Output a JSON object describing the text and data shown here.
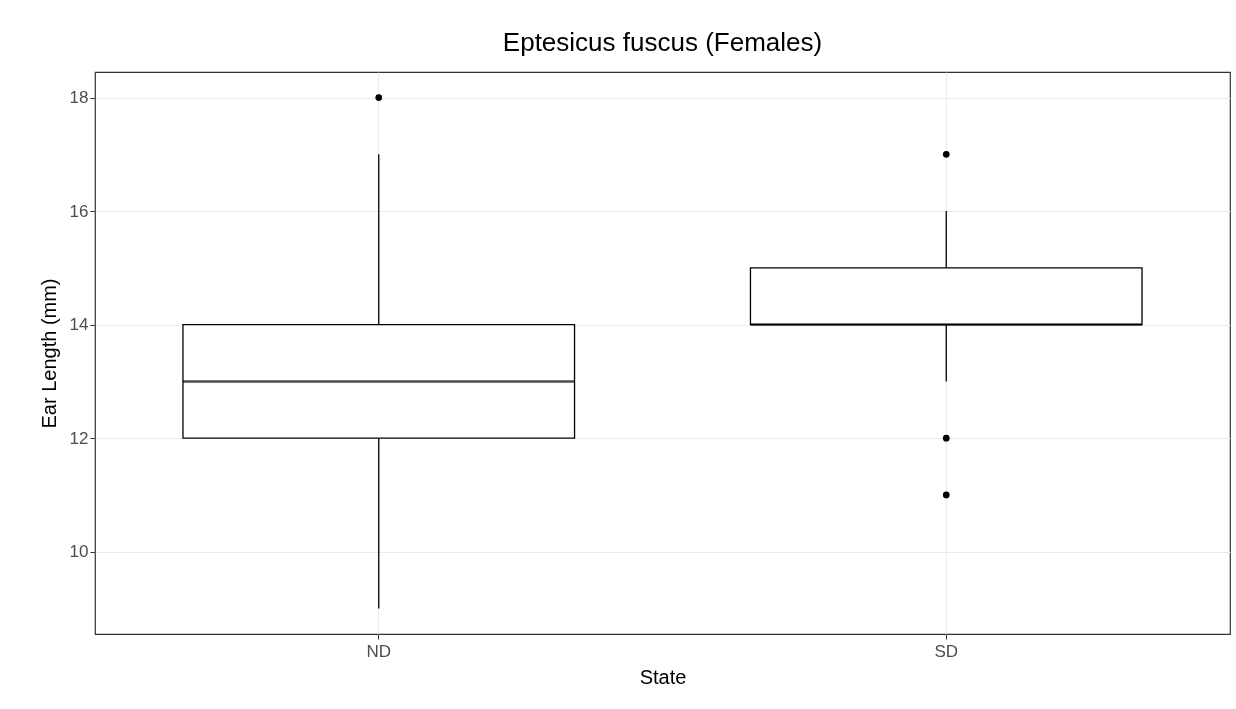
{
  "chart_data": {
    "type": "box",
    "title": "Eptesicus fuscus (Females)",
    "xlabel": "State",
    "ylabel": "Ear Length (mm)",
    "categories": [
      "ND",
      "SD"
    ],
    "boxes": [
      {
        "low": 9,
        "q1": 12,
        "median": 13,
        "q3": 14,
        "high": 17,
        "outliers": [
          18
        ]
      },
      {
        "low": 13,
        "q1": 14,
        "median": 14,
        "q3": 15,
        "high": 16,
        "outliers": [
          17,
          12,
          11
        ]
      }
    ],
    "ylim": [
      8.55,
      18.45
    ],
    "yticks": [
      10,
      12,
      14,
      16,
      18
    ],
    "grid": true
  }
}
